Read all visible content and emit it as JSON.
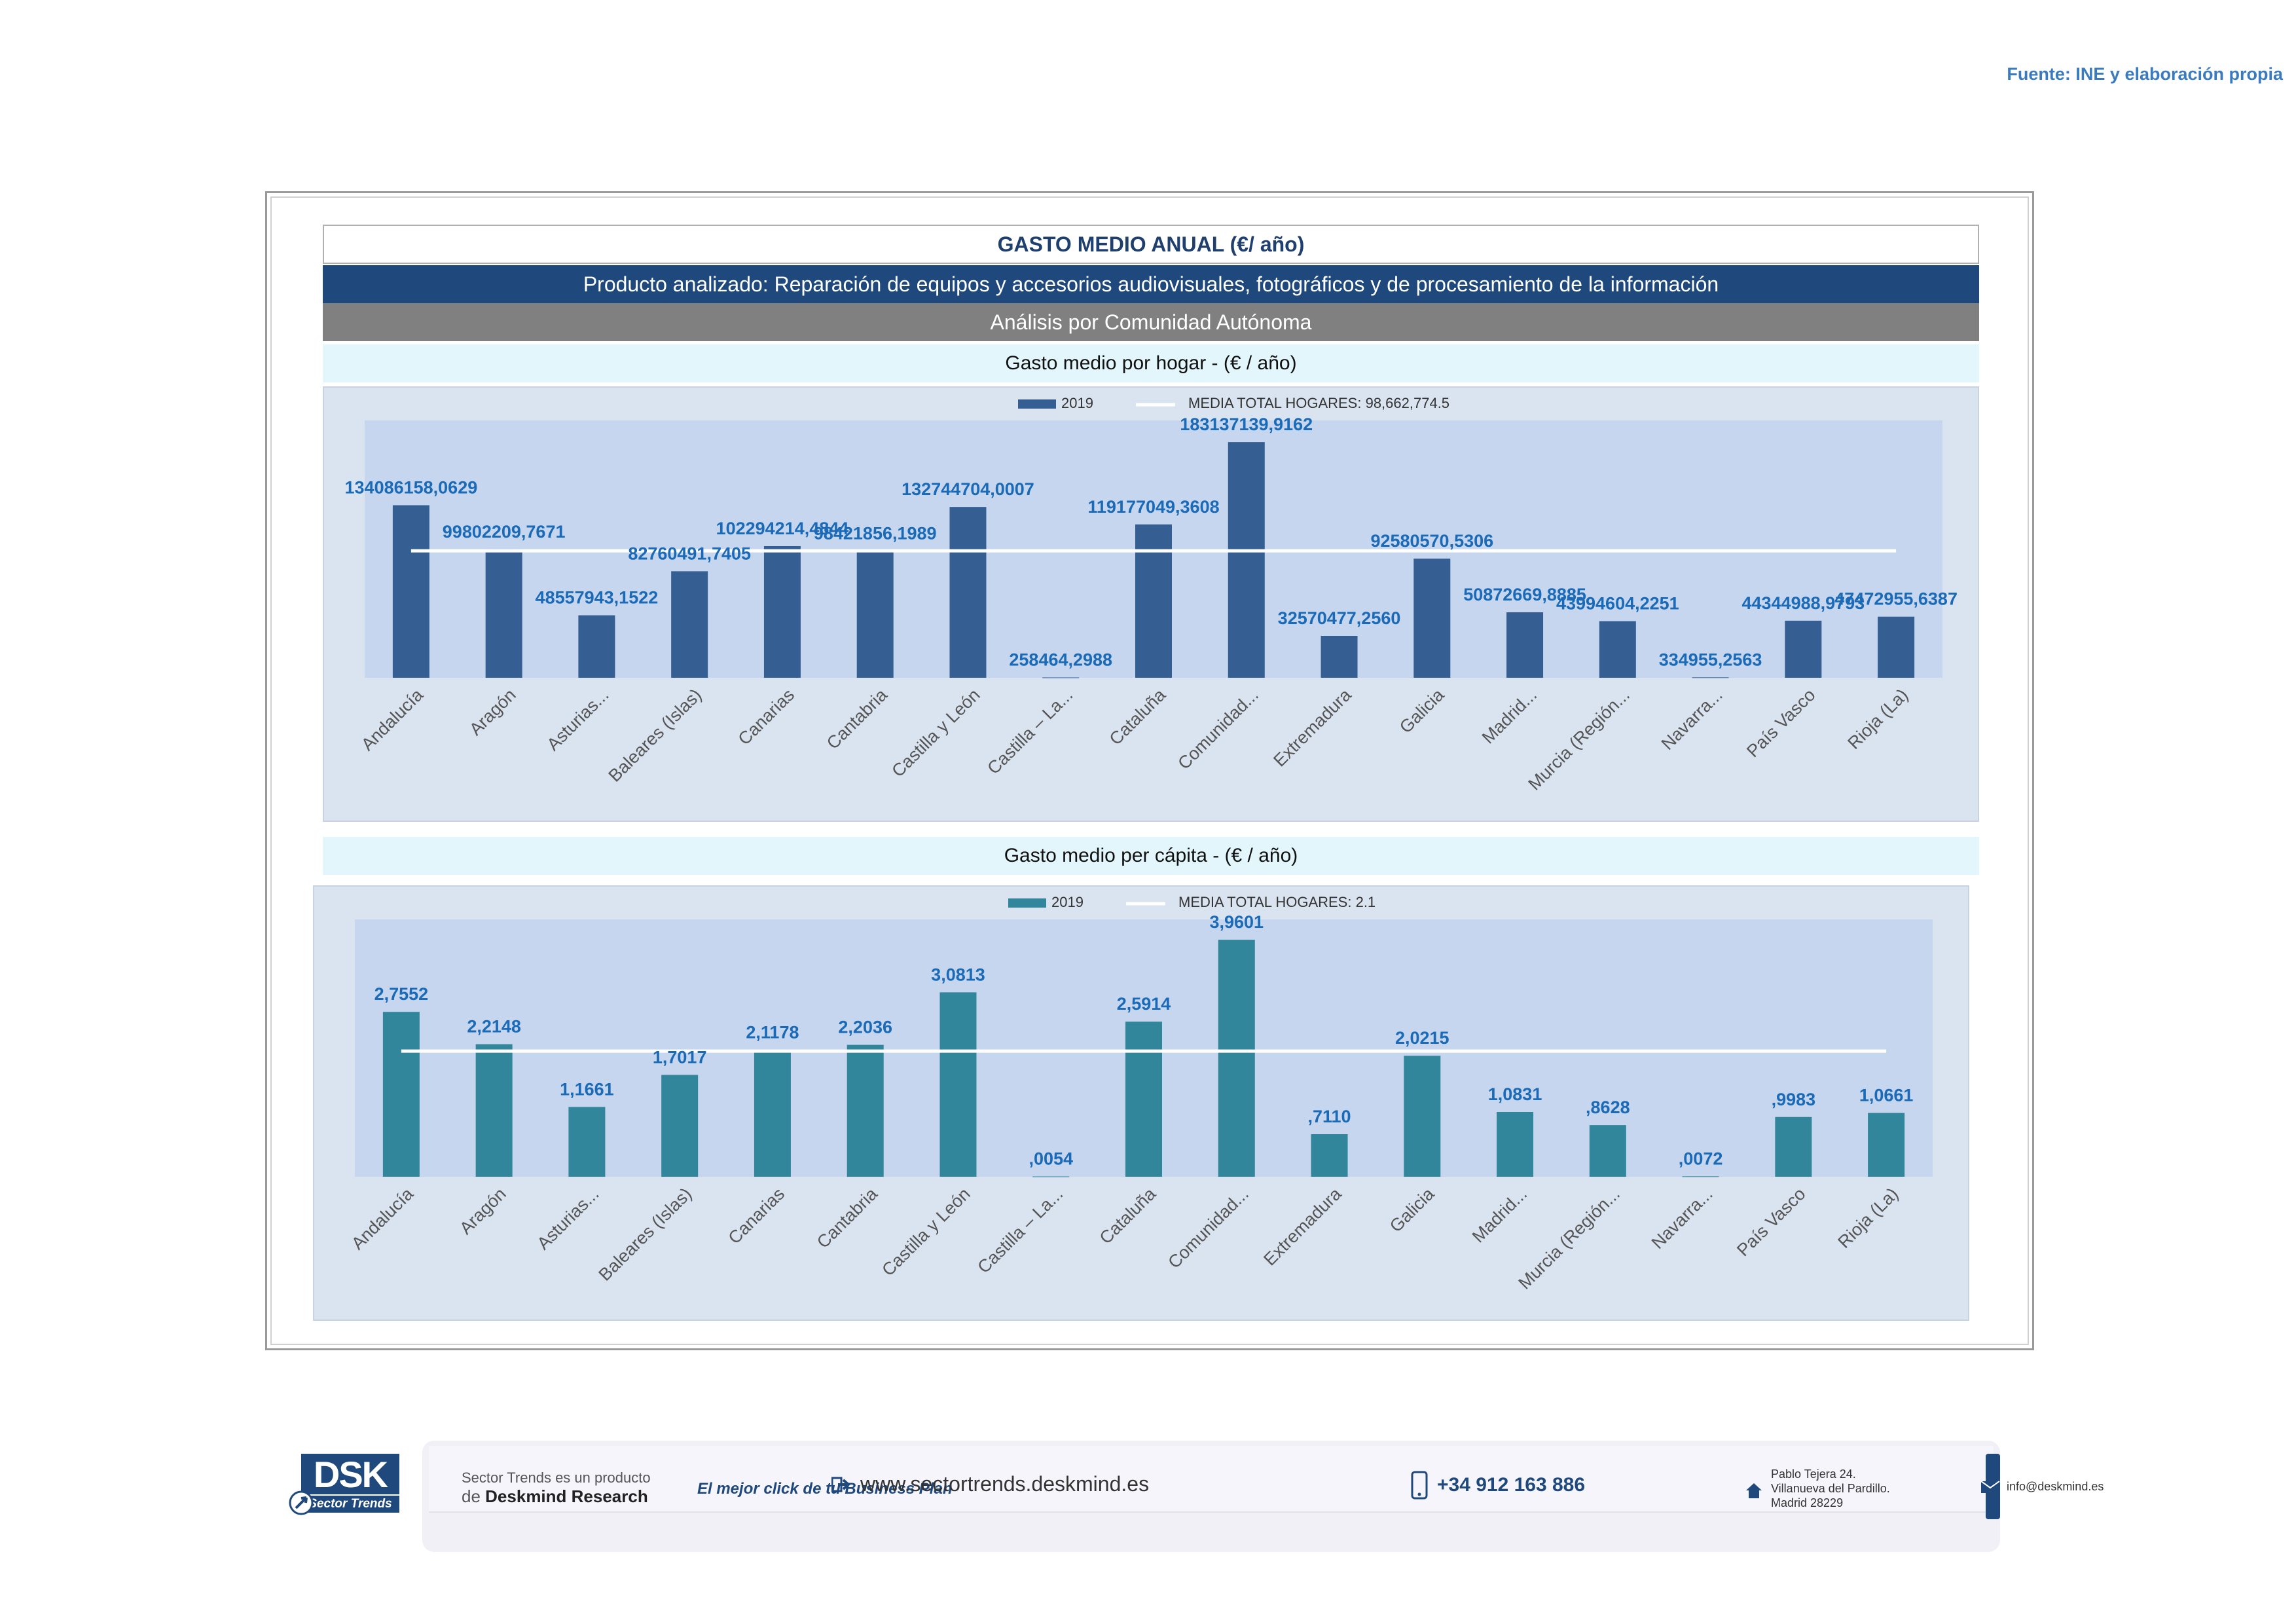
{
  "source": "Fuente: INE y elaboración propia",
  "header": {
    "title": "GASTO MEDIO ANUAL (€/ año)",
    "product": "Producto analizado: Reparación de equipos y accesorios audiovisuales, fotográficos y de procesamiento de la información",
    "analysis": "Análisis por Comunidad Autónoma",
    "sub1": "Gasto medio por hogar -  (€ / año)",
    "sub2": "Gasto medio per cápita -  (€ / año)"
  },
  "chart_data": [
    {
      "type": "bar",
      "title": "Gasto medio por hogar -  (€ / año)",
      "legend": {
        "placement": "top",
        "series": "2019",
        "mean_label": "MEDIA TOTAL  HOGARES:   98,662,774.5"
      },
      "categories": [
        "Andalucía",
        "Aragón",
        "Asturias...",
        "Baleares (Islas)",
        "Canarias",
        "Cantabria",
        "Castilla y León",
        "Castilla – La...",
        "Cataluña",
        "Comunidad...",
        "Extremadura",
        "Galicia",
        "Madrid...",
        "Murcia (Región...",
        "Navarra...",
        "País Vasco",
        "Rioja (La)"
      ],
      "series": [
        {
          "name": "2019",
          "values": [
            134086158.0629,
            99802209.7671,
            48557943.1522,
            82760491.7405,
            102294214.4844,
            98421856.1989,
            132744704.0007,
            258464.2988,
            119177049.3608,
            183137139.9162,
            32570477.256,
            92580570.5306,
            50872669.8885,
            43994604.2251,
            334955.2563,
            44344988.9793,
            47472955.6387
          ]
        }
      ],
      "data_labels": [
        "134086158,0629",
        "99802209,7671",
        "48557943,1522",
        "82760491,7405",
        "102294214,4844",
        "98421856,1989",
        "132744704,0007",
        "258464,2988",
        "119177049,3608",
        "183137139,9162",
        "32570477,2560",
        "92580570,5306",
        "50872669,8885",
        "43994604,2251",
        "334955,2563",
        "44344988,9793",
        "47472955,6387"
      ],
      "mean": 98662774.5,
      "ylim": [
        0,
        200000000
      ],
      "color": "#355e93",
      "mean_color": "#ffffff"
    },
    {
      "type": "bar",
      "title": "Gasto medio per cápita -  (€ / año)",
      "legend": {
        "placement": "top",
        "series": "2019",
        "mean_label": "MEDIA TOTAL  HOGARES:   2.1"
      },
      "categories": [
        "Andalucía",
        "Aragón",
        "Asturias...",
        "Baleares (Islas)",
        "Canarias",
        "Cantabria",
        "Castilla y León",
        "Castilla – La...",
        "Cataluña",
        "Comunidad...",
        "Extremadura",
        "Galicia",
        "Madrid...",
        "Murcia (Región...",
        "Navarra...",
        "País Vasco",
        "Rioja (La)"
      ],
      "series": [
        {
          "name": "2019",
          "values": [
            2.7552,
            2.2148,
            1.1661,
            1.7017,
            2.1178,
            2.2036,
            3.0813,
            0.0054,
            2.5914,
            3.9601,
            0.711,
            2.0215,
            1.0831,
            0.8628,
            0.0072,
            0.9983,
            1.0661
          ]
        }
      ],
      "data_labels": [
        "2,7552",
        "2,2148",
        "1,1661",
        "1,7017",
        "2,1178",
        "2,2036",
        "3,0813",
        ",0054",
        "2,5914",
        "3,9601",
        ",7110",
        "2,0215",
        "1,0831",
        ",8628",
        ",0072",
        ",9983",
        "1,0661"
      ],
      "mean": 2.1,
      "ylim": [
        0,
        4.3
      ],
      "color": "#31869b",
      "mean_color": "#ffffff"
    }
  ],
  "footer": {
    "logo_text": "DSK",
    "logo_sub": "Sector Trends",
    "line1": "Sector Trends es un producto",
    "line2_prefix": "de",
    "line2_brand": "Deskmind Research",
    "slogan": "El mejor click de tu Business Plan",
    "web": "www.sectortrends.deskmind.es",
    "phone": "+34 912 163 886",
    "address1": "Pablo Tejera 24.",
    "address2": "Villanueva del Pardillo.",
    "address3": "Madrid 28229",
    "email": "info@deskmind.es"
  }
}
